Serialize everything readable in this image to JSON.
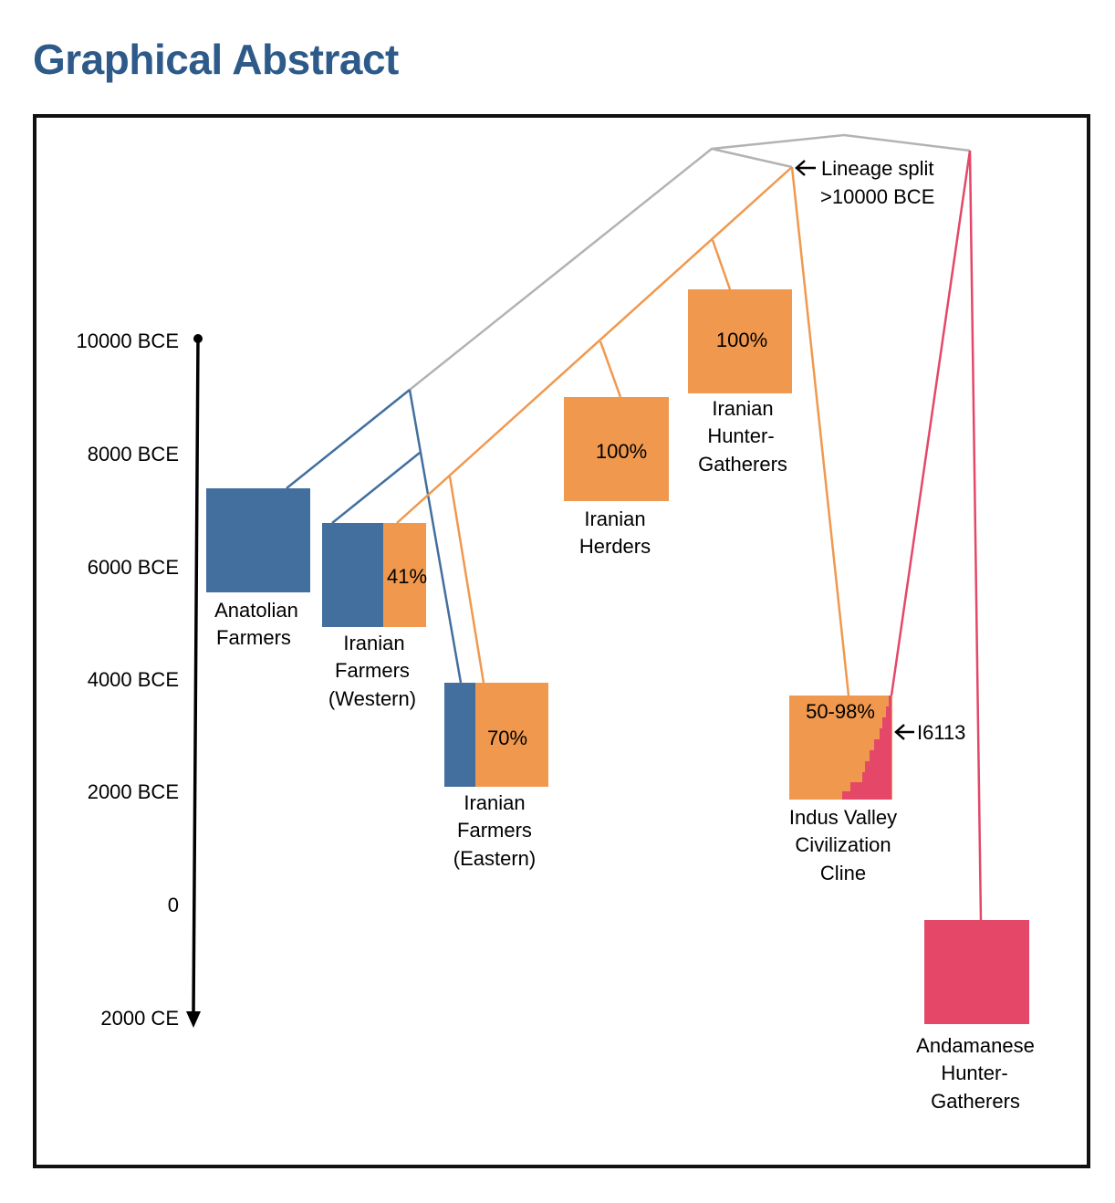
{
  "page": {
    "title": "Graphical Abstract"
  },
  "colors": {
    "blue": "#426f9e",
    "orange": "#f0984e",
    "pink": "#e44767",
    "gray": "#b3b3b3",
    "title": "#2e5a8a"
  },
  "time_axis": {
    "ticks": [
      "10000 BCE",
      "8000 BCE",
      "6000 BCE",
      "4000 BCE",
      "2000 BCE",
      "0",
      "2000 CE"
    ]
  },
  "annotations": {
    "lineage_split_line1": "Lineage split",
    "lineage_split_line2": ">10000 BCE",
    "sample_id": "I6113"
  },
  "populations": {
    "anatolian": {
      "label": [
        "Anatolian",
        "Farmers"
      ]
    },
    "iran_western": {
      "label": [
        "Iranian",
        "Farmers",
        "(Western)"
      ],
      "iranian_ancestry_pct": "41%"
    },
    "iran_eastern": {
      "label": [
        "Iranian",
        "Farmers",
        "(Eastern)"
      ],
      "iranian_ancestry_pct": "70%"
    },
    "iran_herders": {
      "label": [
        "Iranian",
        "Herders"
      ],
      "iranian_ancestry_pct": "100%"
    },
    "iran_hg": {
      "label": [
        "Iranian",
        "Hunter-",
        "Gatherers"
      ],
      "iranian_ancestry_pct": "100%"
    },
    "ivc": {
      "label": [
        "Indus Valley",
        "Civilization",
        "Cline"
      ],
      "iranian_ancestry_pct": "50-98%"
    },
    "andamanese": {
      "label": [
        "Andamanese",
        "Hunter-",
        "Gatherers"
      ]
    }
  }
}
